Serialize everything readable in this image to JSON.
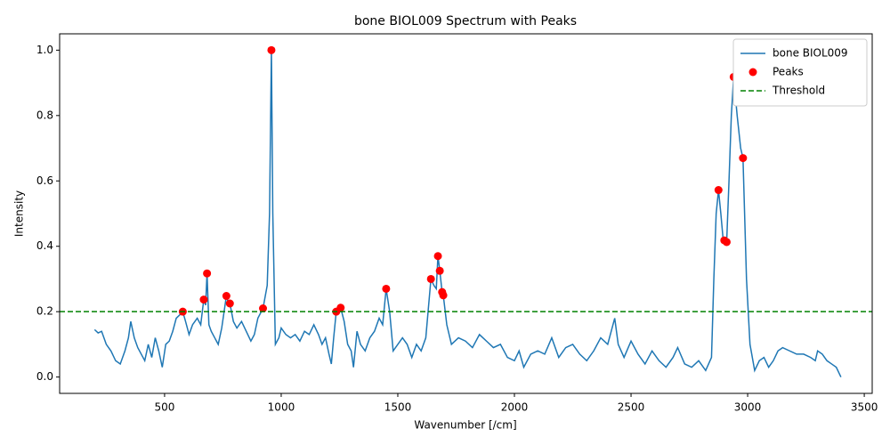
{
  "chart_data": {
    "type": "line",
    "title": "bone BIOL009 Spectrum with Peaks",
    "xlabel": "Wavenumber [/cm]",
    "ylabel": "Intensity",
    "xlim": [
      50,
      3534
    ],
    "ylim": [
      -0.05,
      1.05
    ],
    "xticks": [
      500,
      1000,
      1500,
      2000,
      2500,
      3000,
      3500
    ],
    "yticks": [
      {
        "value": 0,
        "label": "0.0"
      },
      {
        "value": 0.2,
        "label": "0.2"
      },
      {
        "value": 0.4,
        "label": "0.4"
      },
      {
        "value": 0.6,
        "label": "0.6"
      },
      {
        "value": 0.8,
        "label": "0.8"
      },
      {
        "value": 1,
        "label": "1.0"
      }
    ],
    "legend": "upper right",
    "series": [
      {
        "name": "bone BIOL009",
        "type": "line",
        "color": "#1f77b4",
        "x": [
          200,
          215,
          230,
          250,
          270,
          290,
          310,
          330,
          345,
          355,
          370,
          385,
          400,
          415,
          430,
          445,
          460,
          475,
          490,
          505,
          520,
          535,
          550,
          565,
          578,
          590,
          605,
          620,
          640,
          655,
          668,
          676,
          682,
          690,
          700,
          715,
          730,
          745,
          765,
          772,
          780,
          795,
          810,
          830,
          850,
          870,
          885,
          900,
          922,
          940,
          950,
          958,
          964,
          975,
          990,
          1000,
          1020,
          1040,
          1060,
          1080,
          1100,
          1120,
          1140,
          1160,
          1175,
          1190,
          1205,
          1215,
          1225,
          1236,
          1255,
          1270,
          1285,
          1300,
          1310,
          1325,
          1340,
          1360,
          1380,
          1400,
          1420,
          1435,
          1450,
          1465,
          1480,
          1500,
          1520,
          1540,
          1560,
          1580,
          1600,
          1620,
          1642,
          1655,
          1665,
          1672,
          1680,
          1690,
          1695,
          1710,
          1730,
          1760,
          1790,
          1820,
          1850,
          1880,
          1910,
          1940,
          1970,
          2000,
          2020,
          2040,
          2070,
          2100,
          2130,
          2160,
          2190,
          2220,
          2250,
          2280,
          2310,
          2340,
          2370,
          2400,
          2430,
          2445,
          2470,
          2500,
          2530,
          2560,
          2590,
          2620,
          2650,
          2680,
          2700,
          2730,
          2760,
          2790,
          2820,
          2845,
          2855,
          2865,
          2875,
          2885,
          2895,
          2900,
          2910,
          2920,
          2930,
          2940,
          2955,
          2970,
          2980,
          2995,
          3010,
          3030,
          3050,
          3070,
          3090,
          3110,
          3130,
          3150,
          3180,
          3210,
          3240,
          3270,
          3290,
          3300,
          3320,
          3340,
          3360,
          3380,
          3400
        ],
        "values": [
          0.145,
          0.135,
          0.14,
          0.1,
          0.08,
          0.05,
          0.04,
          0.08,
          0.12,
          0.17,
          0.12,
          0.09,
          0.07,
          0.05,
          0.1,
          0.06,
          0.12,
          0.08,
          0.03,
          0.1,
          0.11,
          0.14,
          0.18,
          0.19,
          0.2,
          0.17,
          0.13,
          0.16,
          0.18,
          0.16,
          0.237,
          0.22,
          0.317,
          0.16,
          0.14,
          0.12,
          0.1,
          0.15,
          0.248,
          0.23,
          0.225,
          0.17,
          0.15,
          0.17,
          0.14,
          0.11,
          0.13,
          0.18,
          0.21,
          0.28,
          0.5,
          1.0,
          0.5,
          0.1,
          0.12,
          0.15,
          0.13,
          0.12,
          0.13,
          0.11,
          0.14,
          0.13,
          0.16,
          0.13,
          0.1,
          0.12,
          0.07,
          0.04,
          0.12,
          0.2,
          0.212,
          0.17,
          0.1,
          0.08,
          0.03,
          0.14,
          0.1,
          0.08,
          0.12,
          0.14,
          0.18,
          0.16,
          0.27,
          0.2,
          0.08,
          0.1,
          0.12,
          0.1,
          0.06,
          0.1,
          0.08,
          0.12,
          0.3,
          0.28,
          0.27,
          0.37,
          0.325,
          0.26,
          0.25,
          0.16,
          0.1,
          0.12,
          0.11,
          0.09,
          0.13,
          0.11,
          0.09,
          0.1,
          0.06,
          0.05,
          0.08,
          0.03,
          0.07,
          0.08,
          0.07,
          0.12,
          0.06,
          0.09,
          0.1,
          0.07,
          0.05,
          0.08,
          0.12,
          0.1,
          0.18,
          0.1,
          0.06,
          0.11,
          0.07,
          0.04,
          0.08,
          0.05,
          0.03,
          0.06,
          0.09,
          0.04,
          0.03,
          0.05,
          0.02,
          0.06,
          0.3,
          0.5,
          0.572,
          0.5,
          0.42,
          0.418,
          0.413,
          0.6,
          0.8,
          0.918,
          0.8,
          0.7,
          0.67,
          0.3,
          0.1,
          0.02,
          0.05,
          0.06,
          0.03,
          0.05,
          0.08,
          0.09,
          0.08,
          0.07,
          0.07,
          0.06,
          0.05,
          0.08,
          0.07,
          0.05,
          0.04,
          0.03,
          0.0
        ]
      },
      {
        "name": "Peaks",
        "type": "scatter",
        "color": "#ff0000",
        "x": [
          578,
          668,
          682,
          765,
          780,
          922,
          958,
          1236,
          1255,
          1450,
          1642,
          1672,
          1680,
          1690,
          1695,
          2875,
          2900,
          2910,
          2940,
          2980
        ],
        "values": [
          0.2,
          0.237,
          0.317,
          0.248,
          0.225,
          0.21,
          1.0,
          0.2,
          0.212,
          0.27,
          0.3,
          0.37,
          0.325,
          0.26,
          0.25,
          0.572,
          0.418,
          0.413,
          0.918,
          0.67
        ]
      },
      {
        "name": "Threshold",
        "type": "hline",
        "color": "#008000",
        "value": 0.2
      }
    ]
  }
}
